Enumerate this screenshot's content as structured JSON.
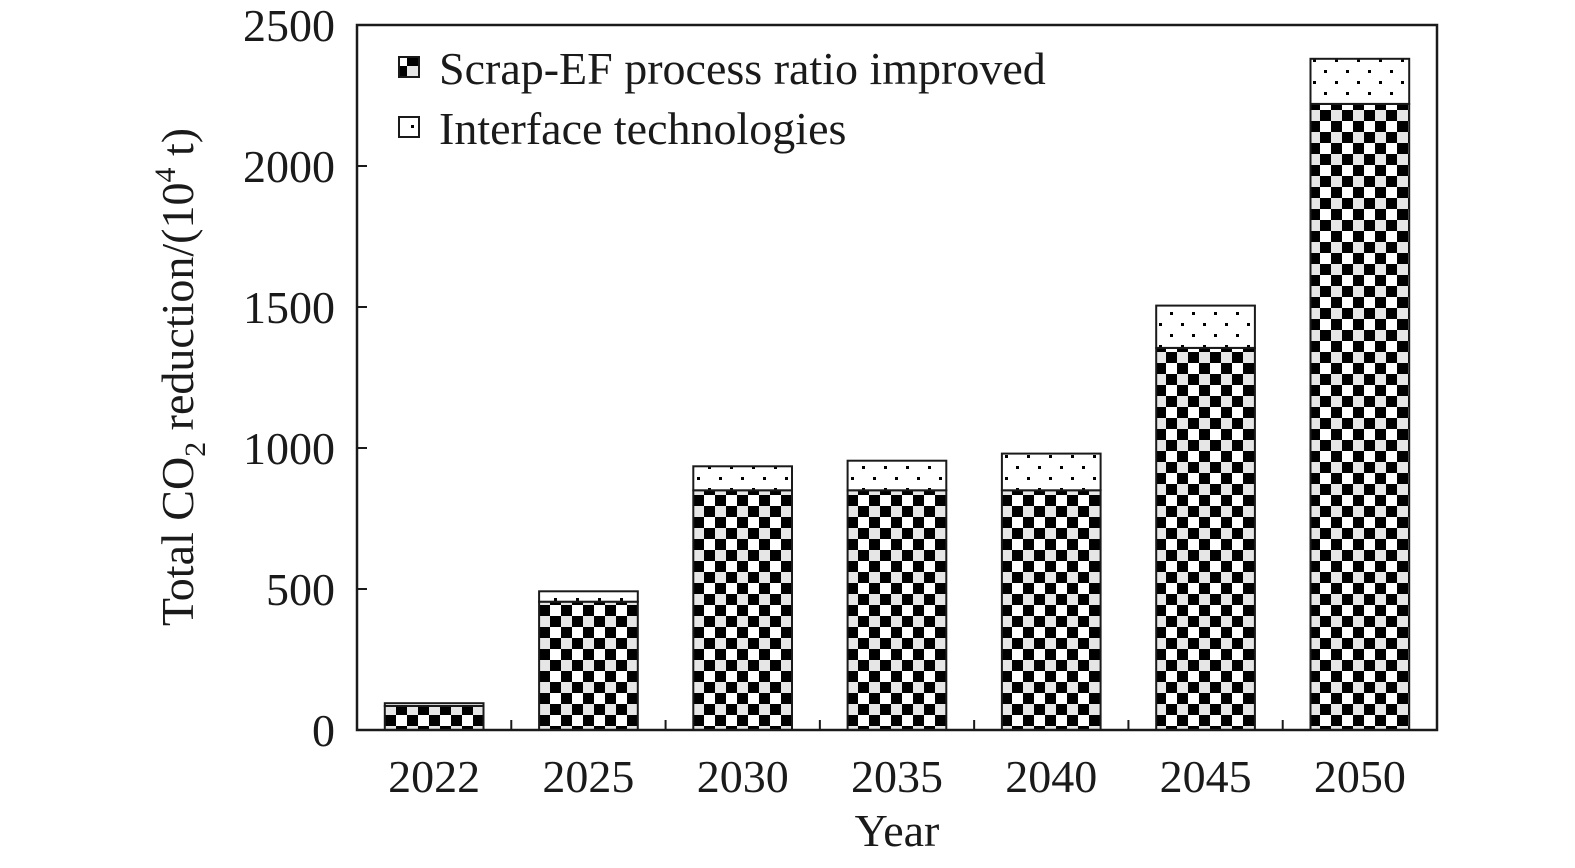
{
  "chart_data": {
    "type": "bar",
    "stacked": true,
    "categories": [
      "2022",
      "2025",
      "2030",
      "2035",
      "2040",
      "2045",
      "2050"
    ],
    "series": [
      {
        "name": "Scrap-EF process ratio improved",
        "pattern": "checker",
        "values": [
          85,
          455,
          850,
          850,
          850,
          1355,
          2220
        ]
      },
      {
        "name": "Interface technologies",
        "pattern": "dots",
        "values": [
          10,
          37,
          85,
          105,
          130,
          150,
          160
        ]
      }
    ],
    "ylim": [
      0,
      2500
    ],
    "yticks": [
      0,
      500,
      1000,
      1500,
      2000,
      2500
    ],
    "xlabel": "Year",
    "ylabel": {
      "prefix": "Total CO",
      "subscript": "2",
      "middle": " reduction/(10",
      "superscript": "4",
      "suffix": " t)"
    },
    "legend_position": "top-left",
    "grid": false,
    "colors": {
      "ink": "#1a1a1a",
      "fill_dark": "#000000",
      "fill_light": "#ffffff"
    }
  }
}
